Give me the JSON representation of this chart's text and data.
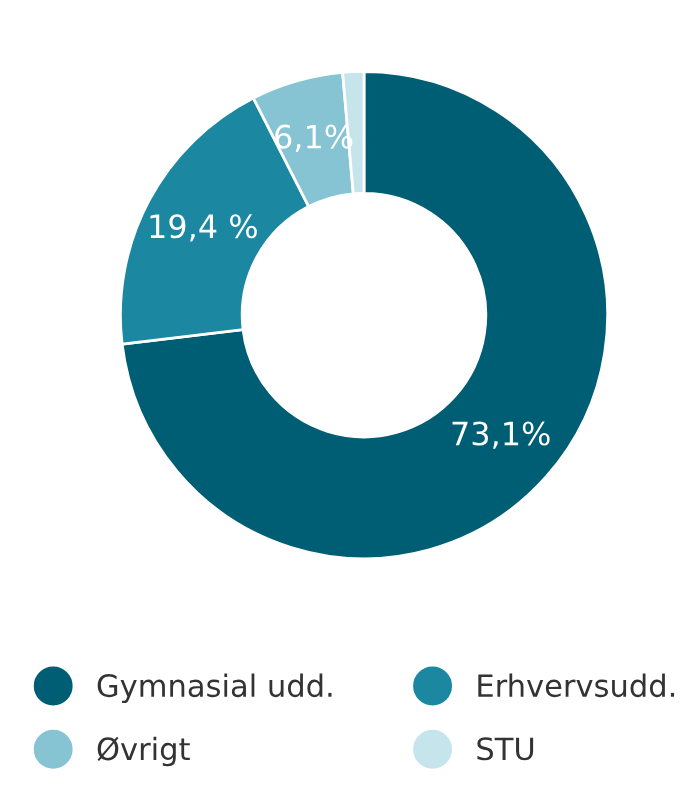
{
  "chart_data": {
    "type": "donut",
    "categories": [
      "Gymnasial udd.",
      "Erhvervsudd.",
      "Øvrigt",
      "STU"
    ],
    "values": [
      73.1,
      19.4,
      6.1,
      1.4
    ],
    "value_labels": [
      "73,1%",
      "19,4 %",
      "6,1%",
      null
    ],
    "colors": [
      "#005e74",
      "#1b87a1",
      "#86c3d3",
      "#c6e4ec"
    ],
    "legend": "bottom"
  }
}
